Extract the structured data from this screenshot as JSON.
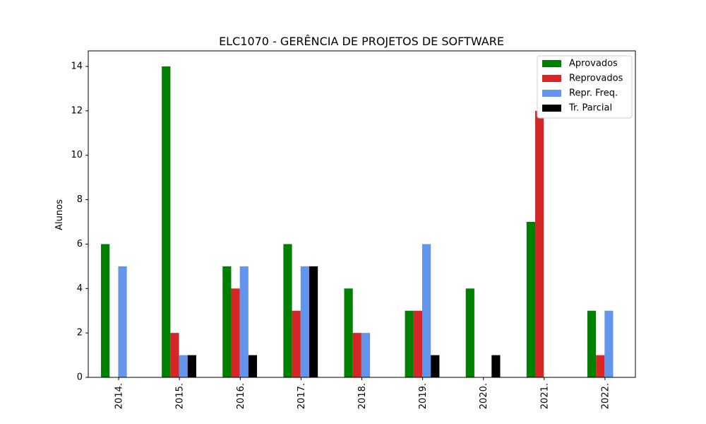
{
  "chart_data": {
    "type": "bar",
    "title": "ELC1070 - GERÊNCIA DE PROJETOS DE SOFTWARE",
    "xlabel": "",
    "ylabel": "Alunos",
    "categories": [
      "2014.",
      "2015.",
      "2016.",
      "2017.",
      "2018.",
      "2019.",
      "2020.",
      "2021.",
      "2022."
    ],
    "ylim": [
      0,
      14.7
    ],
    "yticks": [
      "0",
      "2",
      "4",
      "6",
      "8",
      "10",
      "12",
      "14"
    ],
    "grid": false,
    "legend_position": "top-right",
    "series": [
      {
        "name": "Aprovados",
        "color": "#008000",
        "values": [
          6,
          14,
          5,
          6,
          4,
          3,
          4,
          7,
          3
        ]
      },
      {
        "name": "Reprovados",
        "color": "#d62728",
        "values": [
          0,
          2,
          4,
          3,
          2,
          3,
          0,
          12,
          1
        ]
      },
      {
        "name": "Repr. Freq.",
        "color": "#6495ed",
        "values": [
          5,
          1,
          5,
          5,
          2,
          6,
          0,
          0,
          3
        ]
      },
      {
        "name": "Tr. Parcial",
        "color": "#000000",
        "values": [
          0,
          1,
          1,
          5,
          0,
          1,
          1,
          0,
          0
        ]
      }
    ]
  }
}
